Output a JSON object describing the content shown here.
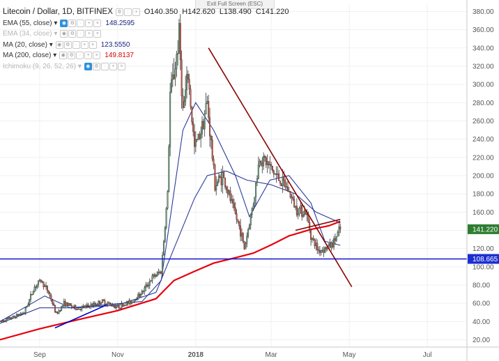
{
  "header": {
    "symbol_title": "Litecoin / Dollar, 1D, BITFINEX",
    "open": "O140.350",
    "high": "H142.620",
    "low": "L138.490",
    "close": "C141.220",
    "exit_fullscreen": "Exit Full Screen (ESC)"
  },
  "indicators": [
    {
      "label": "EMA (55, close)",
      "value": "148.2595",
      "color": "#1a237e",
      "faded": false
    },
    {
      "label": "EMA (34, close)",
      "value": "",
      "color": "#b8b8b8",
      "faded": true
    },
    {
      "label": "MA (20, close)",
      "value": "123.5550",
      "color": "#1a237e",
      "faded": false
    },
    {
      "label": "MA (200, close)",
      "value": "149.8137",
      "color": "#d50000",
      "faded": false
    },
    {
      "label": "Ichimoku (9, 26, 52, 26)",
      "value": "",
      "color": "#b8b8b8",
      "faded": true
    }
  ],
  "colors": {
    "bull": "#6ba583",
    "bear": "#d75442",
    "ma200": "#e8000b",
    "ma_blue": "#2b3a9b",
    "trendline": "#8b0000",
    "support": "#0000cc",
    "last_price_bg": "#2e7d32",
    "support_label_bg": "#1b2fd1"
  },
  "chart_data": {
    "type": "candlestick",
    "title": "Litecoin / Dollar, 1D, BITFINEX",
    "x_tick_labels": [
      "Sep",
      "Nov",
      "2018",
      "Mar",
      "May",
      "Jul"
    ],
    "x_tick_dates": [
      "2017-09-01",
      "2017-11-01",
      "2018-01-01",
      "2018-03-01",
      "2018-05-01",
      "2018-07-01"
    ],
    "x_range": [
      "2017-08-01",
      "2018-08-01"
    ],
    "y_ticks": [
      20,
      40,
      60,
      80,
      100,
      120,
      140,
      160,
      180,
      200,
      220,
      240,
      260,
      280,
      300,
      320,
      340,
      360,
      380
    ],
    "ylim": [
      12,
      388
    ],
    "last_price": 141.22,
    "last_price_label": "141.220",
    "support_level": 108.665,
    "support_label": "108.665",
    "grid": true,
    "price_path": [
      [
        "2017-08-01",
        40
      ],
      [
        "2017-08-10",
        44
      ],
      [
        "2017-08-20",
        50
      ],
      [
        "2017-08-28",
        78
      ],
      [
        "2017-09-02",
        85
      ],
      [
        "2017-09-08",
        72
      ],
      [
        "2017-09-14",
        48
      ],
      [
        "2017-09-20",
        60
      ],
      [
        "2017-10-01",
        54
      ],
      [
        "2017-10-12",
        58
      ],
      [
        "2017-10-20",
        62
      ],
      [
        "2017-11-01",
        56
      ],
      [
        "2017-11-12",
        62
      ],
      [
        "2017-11-20",
        72
      ],
      [
        "2017-11-28",
        88
      ],
      [
        "2017-12-05",
        95
      ],
      [
        "2017-12-10",
        180
      ],
      [
        "2017-12-12",
        290
      ],
      [
        "2017-12-16",
        320
      ],
      [
        "2017-12-19",
        355
      ],
      [
        "2017-12-22",
        270
      ],
      [
        "2017-12-26",
        310
      ],
      [
        "2017-12-31",
        230
      ],
      [
        "2018-01-05",
        250
      ],
      [
        "2018-01-10",
        280
      ],
      [
        "2018-01-16",
        190
      ],
      [
        "2018-01-22",
        200
      ],
      [
        "2018-01-30",
        165
      ],
      [
        "2018-02-05",
        140
      ],
      [
        "2018-02-08",
        120
      ],
      [
        "2018-02-15",
        170
      ],
      [
        "2018-02-20",
        220
      ],
      [
        "2018-02-25",
        215
      ],
      [
        "2018-03-02",
        205
      ],
      [
        "2018-03-08",
        195
      ],
      [
        "2018-03-14",
        185
      ],
      [
        "2018-03-20",
        165
      ],
      [
        "2018-03-28",
        160
      ],
      [
        "2018-04-02",
        130
      ],
      [
        "2018-04-07",
        118
      ],
      [
        "2018-04-12",
        120
      ],
      [
        "2018-04-18",
        125
      ],
      [
        "2018-04-24",
        141.22
      ]
    ],
    "series": [
      {
        "name": "MA (200, close)",
        "color": "#e8000b",
        "points": [
          [
            "2017-08-01",
            20
          ],
          [
            "2017-09-01",
            32
          ],
          [
            "2017-10-01",
            42
          ],
          [
            "2017-11-01",
            52
          ],
          [
            "2017-12-01",
            65
          ],
          [
            "2017-12-15",
            85
          ],
          [
            "2017-12-31",
            95
          ],
          [
            "2018-01-15",
            104
          ],
          [
            "2018-02-01",
            110
          ],
          [
            "2018-02-15",
            115
          ],
          [
            "2018-03-01",
            124
          ],
          [
            "2018-03-15",
            134
          ],
          [
            "2018-04-01",
            141
          ],
          [
            "2018-04-15",
            145
          ],
          [
            "2018-04-24",
            149.81
          ]
        ]
      },
      {
        "name": "EMA (55, close)",
        "color": "#2b3a9b",
        "points": [
          [
            "2017-08-01",
            38
          ],
          [
            "2017-09-01",
            55
          ],
          [
            "2017-10-01",
            55
          ],
          [
            "2017-11-01",
            58
          ],
          [
            "2017-12-01",
            72
          ],
          [
            "2017-12-15",
            120
          ],
          [
            "2017-12-31",
            175
          ],
          [
            "2018-01-10",
            200
          ],
          [
            "2018-01-25",
            205
          ],
          [
            "2018-02-10",
            195
          ],
          [
            "2018-03-01",
            190
          ],
          [
            "2018-03-20",
            180
          ],
          [
            "2018-04-05",
            160
          ],
          [
            "2018-04-24",
            148.26
          ]
        ]
      },
      {
        "name": "MA (20, close)",
        "color": "#2b3a9b",
        "points": [
          [
            "2017-08-01",
            40
          ],
          [
            "2017-09-05",
            68
          ],
          [
            "2017-09-25",
            55
          ],
          [
            "2017-10-20",
            58
          ],
          [
            "2017-11-20",
            62
          ],
          [
            "2017-12-05",
            85
          ],
          [
            "2017-12-22",
            250
          ],
          [
            "2018-01-01",
            280
          ],
          [
            "2018-01-15",
            250
          ],
          [
            "2018-02-01",
            200
          ],
          [
            "2018-02-12",
            155
          ],
          [
            "2018-02-28",
            195
          ],
          [
            "2018-03-15",
            200
          ],
          [
            "2018-04-01",
            170
          ],
          [
            "2018-04-12",
            128
          ],
          [
            "2018-04-24",
            123.56
          ]
        ]
      }
    ],
    "trendlines": [
      {
        "name": "descending-trendline",
        "color": "#8b0000",
        "from": [
          "2018-01-11",
          340
        ],
        "to": [
          "2018-05-03",
          78
        ]
      },
      {
        "name": "upper-trendline",
        "color": "#8b0000",
        "from": [
          "2018-03-20",
          140
        ],
        "to": [
          "2018-04-24",
          152
        ]
      },
      {
        "name": "ascending-trendline",
        "color": "#0000cc",
        "from": [
          "2017-09-13",
          33
        ],
        "to": [
          "2017-10-23",
          58
        ]
      }
    ]
  }
}
